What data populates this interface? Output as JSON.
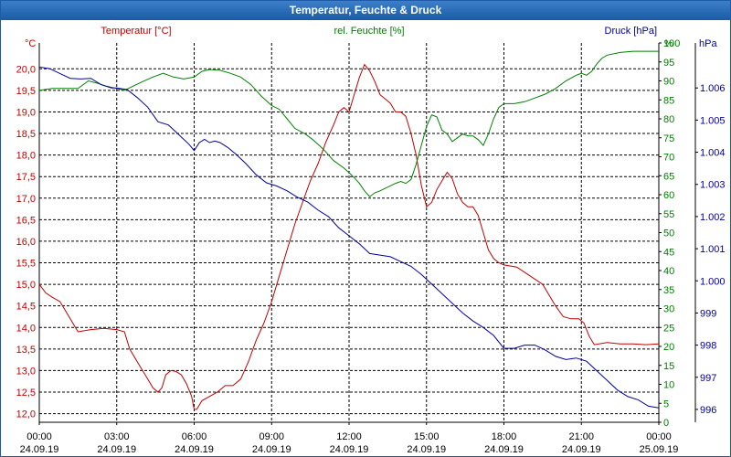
{
  "window": {
    "title": "Temperatur, Feuchte & Druck"
  },
  "colors": {
    "temperature": "#c00000",
    "humidity": "#008000",
    "pressure": "#0000a0",
    "grid": "#000000"
  },
  "chart_data": {
    "type": "line",
    "title": "Temperatur, Feuchte & Druck",
    "xlim_hours": [
      0,
      24
    ],
    "x_ticks": [
      {
        "hour": 0,
        "time": "00:00",
        "date": "24.09.19"
      },
      {
        "hour": 3,
        "time": "03:00",
        "date": "24.09.19"
      },
      {
        "hour": 6,
        "time": "06:00",
        "date": "24.09.19"
      },
      {
        "hour": 9,
        "time": "09:00",
        "date": "24.09.19"
      },
      {
        "hour": 12,
        "time": "12:00",
        "date": "24.09.19"
      },
      {
        "hour": 15,
        "time": "15:00",
        "date": "24.09.19"
      },
      {
        "hour": 18,
        "time": "18:00",
        "date": "24.09.19"
      },
      {
        "hour": 21,
        "time": "21:00",
        "date": "24.09.19"
      },
      {
        "hour": 24,
        "time": "00:00",
        "date": "25.09.19"
      }
    ],
    "axes": {
      "temperature": {
        "label": "Temperatur [°C]",
        "unit": "°C",
        "ylim": [
          11.8,
          20.6
        ],
        "ticks": [
          "12,0",
          "12,5",
          "13,0",
          "13,5",
          "14,0",
          "14,5",
          "15,0",
          "15,5",
          "16,0",
          "16,5",
          "17,0",
          "17,5",
          "18,0",
          "18,5",
          "19,0",
          "19,5",
          "20,0"
        ]
      },
      "humidity": {
        "label": "rel. Feuchte [%]",
        "unit": "%",
        "ylim": [
          0,
          100
        ],
        "ticks": [
          "0",
          "5",
          "10",
          "15",
          "20",
          "25",
          "30",
          "35",
          "40",
          "45",
          "50",
          "55",
          "60",
          "65",
          "70",
          "75",
          "80",
          "85",
          "90",
          "95",
          "100"
        ]
      },
      "pressure": {
        "label": "Druck [hPa]",
        "unit": "hPa",
        "ylim": [
          995.6,
          1007.4
        ],
        "ticks": [
          "996",
          "997",
          "998",
          "999",
          "1.000",
          "1.001",
          "1.002",
          "1.003",
          "1.004",
          "1.005",
          "1.006"
        ]
      }
    },
    "series": [
      {
        "name": "Temperatur",
        "unit": "°C",
        "axis": "temperature",
        "points": [
          [
            0,
            15.0
          ],
          [
            0.25,
            14.8
          ],
          [
            0.5,
            14.7
          ],
          [
            0.8,
            14.6
          ],
          [
            1.0,
            14.4
          ],
          [
            1.2,
            14.2
          ],
          [
            1.4,
            14.0
          ],
          [
            1.5,
            13.9
          ],
          [
            2.0,
            13.95
          ],
          [
            2.5,
            13.98
          ],
          [
            3.0,
            13.95
          ],
          [
            3.3,
            13.9
          ],
          [
            3.5,
            13.5
          ],
          [
            3.8,
            13.2
          ],
          [
            4.0,
            13.0
          ],
          [
            4.2,
            12.8
          ],
          [
            4.4,
            12.6
          ],
          [
            4.6,
            12.5
          ],
          [
            4.75,
            12.6
          ],
          [
            4.9,
            12.9
          ],
          [
            5.1,
            13.0
          ],
          [
            5.3,
            12.98
          ],
          [
            5.5,
            12.9
          ],
          [
            5.7,
            12.7
          ],
          [
            5.9,
            12.4
          ],
          [
            6.0,
            12.1
          ],
          [
            6.1,
            12.1
          ],
          [
            6.3,
            12.3
          ],
          [
            6.6,
            12.4
          ],
          [
            6.9,
            12.5
          ],
          [
            7.2,
            12.65
          ],
          [
            7.5,
            12.65
          ],
          [
            7.8,
            12.8
          ],
          [
            8.1,
            13.2
          ],
          [
            8.4,
            13.7
          ],
          [
            8.7,
            14.1
          ],
          [
            9.0,
            14.6
          ],
          [
            9.3,
            15.2
          ],
          [
            9.6,
            15.8
          ],
          [
            9.9,
            16.4
          ],
          [
            10.2,
            16.9
          ],
          [
            10.5,
            17.4
          ],
          [
            10.8,
            17.8
          ],
          [
            11.1,
            18.3
          ],
          [
            11.4,
            18.7
          ],
          [
            11.6,
            19.0
          ],
          [
            11.8,
            19.1
          ],
          [
            12.0,
            19.0
          ],
          [
            12.2,
            19.4
          ],
          [
            12.4,
            19.8
          ],
          [
            12.6,
            20.1
          ],
          [
            12.8,
            19.95
          ],
          [
            13.0,
            19.7
          ],
          [
            13.2,
            19.4
          ],
          [
            13.4,
            19.3
          ],
          [
            13.6,
            19.2
          ],
          [
            13.8,
            19.0
          ],
          [
            14.0,
            19.0
          ],
          [
            14.2,
            18.9
          ],
          [
            14.4,
            18.5
          ],
          [
            14.6,
            18.0
          ],
          [
            14.8,
            17.3
          ],
          [
            15.0,
            16.8
          ],
          [
            15.2,
            16.9
          ],
          [
            15.4,
            17.2
          ],
          [
            15.6,
            17.4
          ],
          [
            15.8,
            17.6
          ],
          [
            16.0,
            17.45
          ],
          [
            16.2,
            17.1
          ],
          [
            16.4,
            16.9
          ],
          [
            16.6,
            16.8
          ],
          [
            16.8,
            16.8
          ],
          [
            17.0,
            16.6
          ],
          [
            17.2,
            16.2
          ],
          [
            17.4,
            15.8
          ],
          [
            17.6,
            15.6
          ],
          [
            17.8,
            15.5
          ],
          [
            18.0,
            15.45
          ],
          [
            18.5,
            15.4
          ],
          [
            19.0,
            15.2
          ],
          [
            19.5,
            15.0
          ],
          [
            20.0,
            14.5
          ],
          [
            20.3,
            14.25
          ],
          [
            20.6,
            14.2
          ],
          [
            20.9,
            14.2
          ],
          [
            21.1,
            14.1
          ],
          [
            21.3,
            13.8
          ],
          [
            21.5,
            13.6
          ],
          [
            22.0,
            13.65
          ],
          [
            22.5,
            13.62
          ],
          [
            23.0,
            13.62
          ],
          [
            23.5,
            13.6
          ],
          [
            24.0,
            13.62
          ]
        ]
      },
      {
        "name": "rel. Feuchte",
        "unit": "%",
        "axis": "humidity",
        "points": [
          [
            0,
            87.5
          ],
          [
            0.5,
            88.0
          ],
          [
            1.0,
            88.0
          ],
          [
            1.5,
            88.0
          ],
          [
            1.9,
            90.0
          ],
          [
            2.2,
            89.5
          ],
          [
            2.6,
            88.6
          ],
          [
            3.0,
            88.0
          ],
          [
            3.3,
            87.5
          ],
          [
            3.6,
            88.5
          ],
          [
            4.0,
            89.8
          ],
          [
            4.4,
            91.0
          ],
          [
            4.8,
            92.0
          ],
          [
            5.2,
            91.0
          ],
          [
            5.6,
            90.5
          ],
          [
            6.0,
            91.0
          ],
          [
            6.3,
            92.5
          ],
          [
            6.6,
            93.0
          ],
          [
            7.0,
            92.8
          ],
          [
            7.4,
            92.0
          ],
          [
            7.8,
            91.0
          ],
          [
            8.2,
            89.0
          ],
          [
            8.6,
            86.0
          ],
          [
            9.0,
            83.5
          ],
          [
            9.3,
            82.5
          ],
          [
            9.6,
            80.0
          ],
          [
            9.9,
            77.5
          ],
          [
            10.3,
            76.0
          ],
          [
            10.6,
            74.5
          ],
          [
            11.0,
            72.0
          ],
          [
            11.4,
            69.0
          ],
          [
            11.8,
            67.0
          ],
          [
            12.0,
            65.8
          ],
          [
            12.2,
            64.5
          ],
          [
            12.4,
            63.0
          ],
          [
            12.6,
            61.0
          ],
          [
            12.8,
            59.5
          ],
          [
            13.0,
            60.5
          ],
          [
            13.2,
            61.0
          ],
          [
            13.5,
            62.0
          ],
          [
            13.8,
            63.0
          ],
          [
            14.0,
            63.5
          ],
          [
            14.2,
            63.0
          ],
          [
            14.4,
            64.0
          ],
          [
            14.6,
            68.0
          ],
          [
            14.8,
            73.0
          ],
          [
            15.0,
            78.0
          ],
          [
            15.2,
            81.0
          ],
          [
            15.4,
            80.5
          ],
          [
            15.6,
            77.0
          ],
          [
            15.8,
            76.0
          ],
          [
            16.0,
            74.0
          ],
          [
            16.2,
            75.0
          ],
          [
            16.4,
            76.0
          ],
          [
            16.6,
            75.5
          ],
          [
            16.8,
            75.5
          ],
          [
            17.0,
            74.5
          ],
          [
            17.2,
            73.0
          ],
          [
            17.4,
            76.0
          ],
          [
            17.6,
            80.0
          ],
          [
            17.8,
            83.0
          ],
          [
            18.0,
            84.0
          ],
          [
            18.4,
            84.0
          ],
          [
            18.8,
            84.5
          ],
          [
            19.2,
            85.5
          ],
          [
            19.6,
            86.5
          ],
          [
            20.0,
            88.0
          ],
          [
            20.4,
            90.0
          ],
          [
            20.8,
            91.5
          ],
          [
            21.0,
            92.0
          ],
          [
            21.2,
            91.5
          ],
          [
            21.4,
            92.5
          ],
          [
            21.6,
            94.5
          ],
          [
            21.8,
            96.0
          ],
          [
            22.0,
            96.8
          ],
          [
            22.5,
            97.5
          ],
          [
            23.0,
            97.8
          ],
          [
            24.0,
            97.8
          ]
        ]
      },
      {
        "name": "Druck",
        "unit": "hPa",
        "axis": "pressure",
        "points": [
          [
            0,
            1006.65
          ],
          [
            0.4,
            1006.6
          ],
          [
            0.8,
            1006.45
          ],
          [
            1.2,
            1006.3
          ],
          [
            1.6,
            1006.28
          ],
          [
            2.0,
            1006.3
          ],
          [
            2.4,
            1006.1
          ],
          [
            2.8,
            1006.0
          ],
          [
            3.0,
            1006.0
          ],
          [
            3.4,
            1005.95
          ],
          [
            3.8,
            1005.7
          ],
          [
            4.2,
            1005.4
          ],
          [
            4.6,
            1004.95
          ],
          [
            5.0,
            1004.85
          ],
          [
            5.4,
            1004.55
          ],
          [
            5.8,
            1004.25
          ],
          [
            6.0,
            1004.05
          ],
          [
            6.2,
            1004.3
          ],
          [
            6.4,
            1004.4
          ],
          [
            6.6,
            1004.3
          ],
          [
            6.8,
            1004.35
          ],
          [
            7.0,
            1004.3
          ],
          [
            7.3,
            1004.15
          ],
          [
            7.6,
            1003.95
          ],
          [
            8.0,
            1003.65
          ],
          [
            8.4,
            1003.3
          ],
          [
            8.8,
            1003.05
          ],
          [
            9.2,
            1002.95
          ],
          [
            9.6,
            1002.8
          ],
          [
            10.0,
            1002.6
          ],
          [
            10.4,
            1002.45
          ],
          [
            10.8,
            1002.2
          ],
          [
            11.2,
            1002.0
          ],
          [
            11.6,
            1001.65
          ],
          [
            12.0,
            1001.4
          ],
          [
            12.4,
            1001.15
          ],
          [
            12.8,
            1000.85
          ],
          [
            13.2,
            1000.8
          ],
          [
            13.6,
            1000.75
          ],
          [
            14.0,
            1000.6
          ],
          [
            14.4,
            1000.45
          ],
          [
            14.8,
            1000.2
          ],
          [
            15.2,
            999.9
          ],
          [
            15.6,
            999.6
          ],
          [
            16.0,
            999.3
          ],
          [
            16.4,
            999.0
          ],
          [
            16.8,
            998.75
          ],
          [
            17.2,
            998.55
          ],
          [
            17.6,
            998.3
          ],
          [
            18.0,
            997.9
          ],
          [
            18.4,
            997.9
          ],
          [
            18.8,
            998.0
          ],
          [
            19.2,
            998.0
          ],
          [
            19.6,
            997.85
          ],
          [
            20.0,
            997.65
          ],
          [
            20.4,
            997.55
          ],
          [
            20.8,
            997.6
          ],
          [
            21.2,
            997.5
          ],
          [
            21.6,
            997.2
          ],
          [
            22.0,
            996.9
          ],
          [
            22.4,
            996.6
          ],
          [
            22.8,
            996.4
          ],
          [
            23.2,
            996.3
          ],
          [
            23.6,
            996.1
          ],
          [
            24.0,
            996.05
          ]
        ]
      }
    ]
  }
}
